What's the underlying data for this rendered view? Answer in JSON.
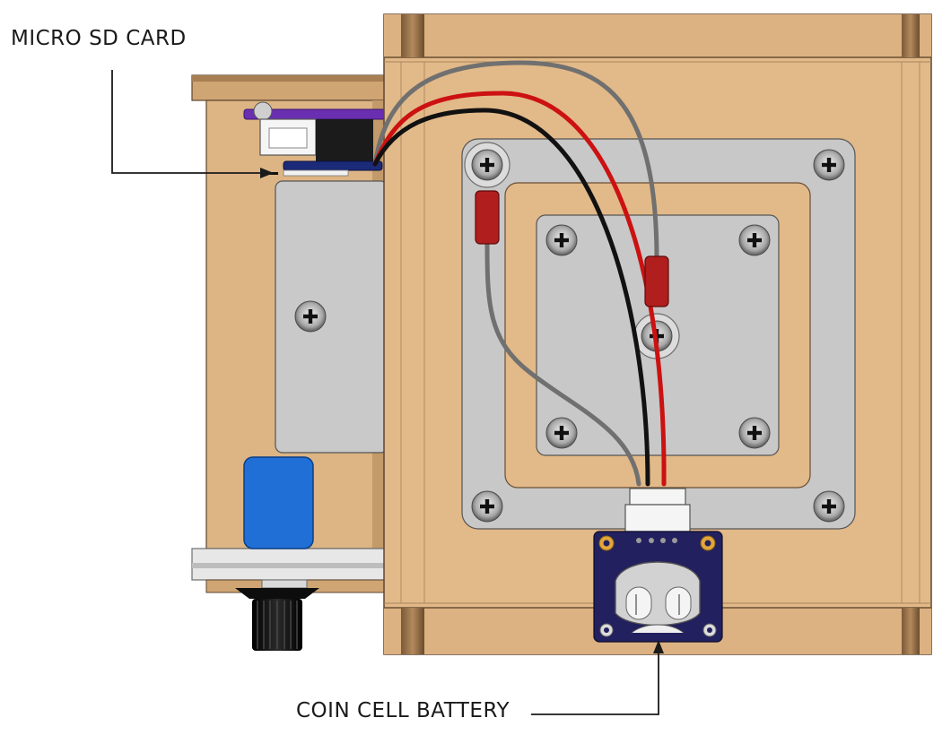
{
  "labels": {
    "micro_sd_card": "MICRO SD CARD",
    "coin_cell_battery": "COIN CELL BATTERY"
  },
  "colors": {
    "wood": "#e2b988",
    "wood_dark": "#c9a06f",
    "wood_shadow": "#8a6b48",
    "plate": "#c8c8c8",
    "plate_stroke": "#6e6e6e",
    "wire_black": "#111111",
    "wire_red": "#cc1111",
    "wire_gray": "#707070",
    "heatshrink_red": "#b01e1e",
    "sd_board_purple": "#6a2fb0",
    "rtc_board_navy": "#22205e",
    "blue_component": "#1f6fd6",
    "brass": "#e2a63a",
    "label_text": "#1a1a1a"
  },
  "icons": {
    "screw": "phillips-screw-icon",
    "knob": "rotary-knob-icon",
    "arrow": "leader-arrow-icon"
  }
}
